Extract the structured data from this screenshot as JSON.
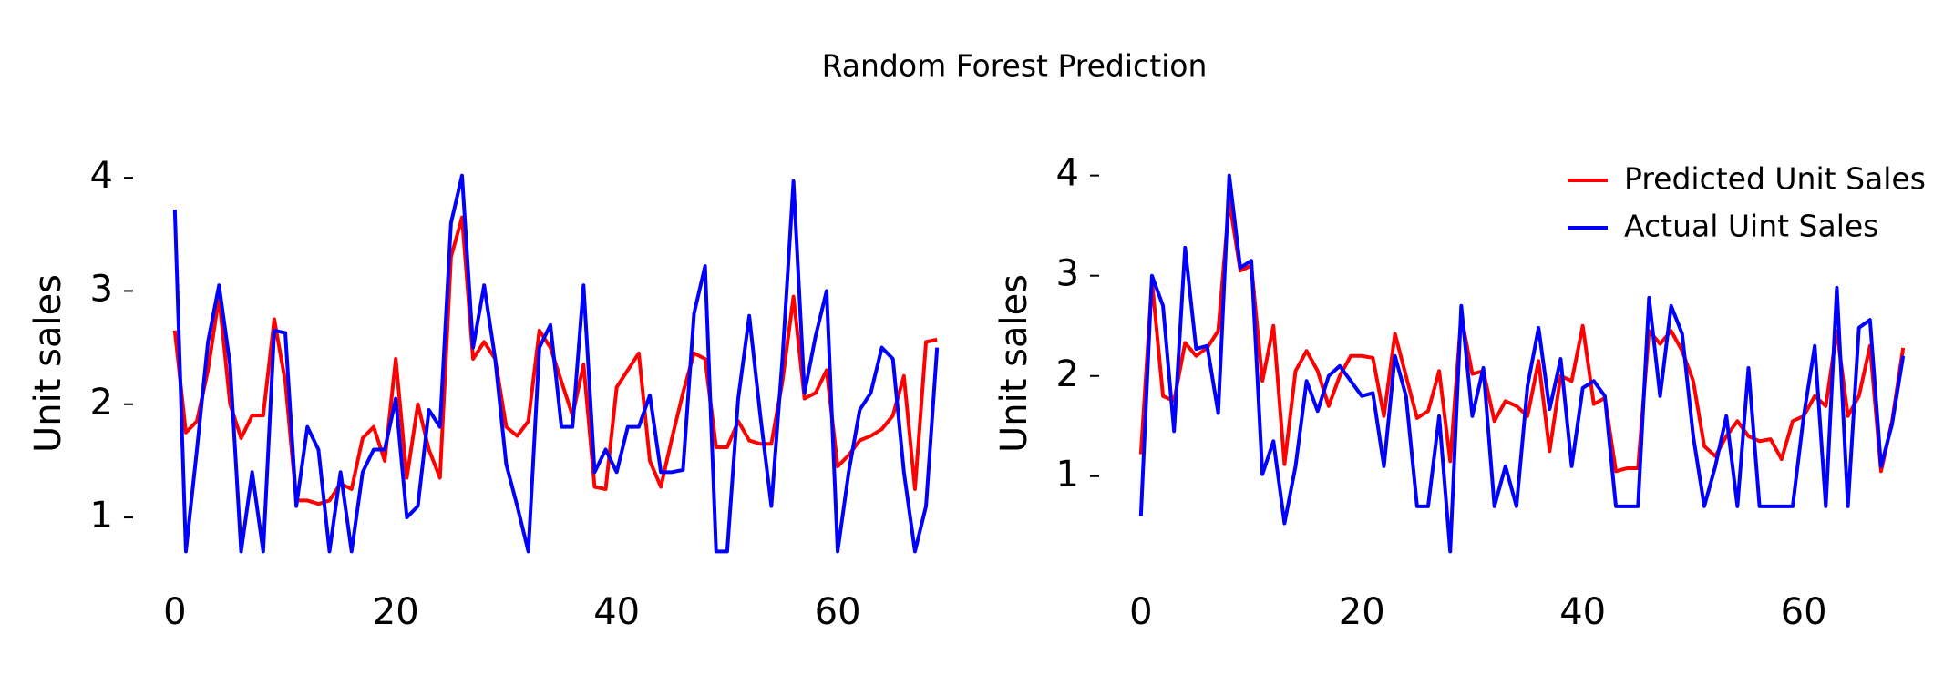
{
  "title": "Random Forest Prediction",
  "chart_data": [
    {
      "type": "line",
      "ylabel": "Unit sales",
      "x": [
        0,
        1,
        2,
        3,
        4,
        5,
        6,
        7,
        8,
        9,
        10,
        11,
        12,
        13,
        14,
        15,
        16,
        17,
        18,
        19,
        20,
        21,
        22,
        23,
        24,
        25,
        26,
        27,
        28,
        29,
        30,
        31,
        32,
        33,
        34,
        35,
        36,
        37,
        38,
        39,
        40,
        41,
        42,
        43,
        44,
        45,
        46,
        47,
        48,
        49,
        50,
        51,
        52,
        53,
        54,
        55,
        56,
        57,
        58,
        59,
        60,
        61,
        62,
        63,
        64,
        65,
        66,
        67,
        68,
        69
      ],
      "series": [
        {
          "color": "#ff0000",
          "values": [
            2.65,
            1.75,
            1.85,
            2.3,
            2.95,
            2.0,
            1.7,
            1.9,
            1.9,
            2.75,
            2.2,
            1.15,
            1.15,
            1.12,
            1.15,
            1.3,
            1.25,
            1.7,
            1.8,
            1.5,
            2.4,
            1.35,
            2.0,
            1.6,
            1.35,
            3.3,
            3.65,
            2.4,
            2.55,
            2.4,
            1.8,
            1.72,
            1.85,
            2.65,
            2.5,
            2.2,
            1.9,
            2.35,
            1.27,
            1.25,
            2.15,
            2.3,
            2.45,
            1.5,
            1.27,
            1.7,
            2.1,
            2.45,
            2.4,
            1.62,
            1.62,
            1.85,
            1.68,
            1.65,
            1.65,
            2.2,
            2.95,
            2.05,
            2.1,
            2.3,
            1.45,
            1.55,
            1.68,
            1.72,
            1.78,
            1.9,
            2.25,
            1.25,
            2.55,
            2.57
          ]
        },
        {
          "color": "#0000ff",
          "values": [
            3.72,
            0.7,
            1.6,
            2.55,
            3.05,
            2.35,
            0.7,
            1.4,
            0.7,
            2.65,
            2.63,
            1.1,
            1.8,
            1.6,
            0.7,
            1.4,
            0.7,
            1.4,
            1.6,
            1.6,
            2.05,
            1.0,
            1.1,
            1.95,
            1.8,
            3.6,
            4.02,
            2.5,
            3.05,
            2.4,
            1.47,
            1.1,
            0.7,
            2.5,
            2.7,
            1.8,
            1.8,
            3.05,
            1.4,
            1.6,
            1.4,
            1.8,
            1.8,
            2.08,
            1.4,
            1.4,
            1.42,
            2.8,
            3.22,
            0.7,
            0.7,
            2.05,
            2.78,
            1.9,
            1.1,
            2.4,
            3.97,
            2.1,
            2.6,
            3.0,
            0.7,
            1.4,
            1.95,
            2.1,
            2.5,
            2.4,
            1.4,
            0.7,
            1.1,
            2.5
          ]
        }
      ],
      "xlim": [
        -3.45,
        72.45
      ],
      "xticks": [
        0,
        20,
        40,
        60
      ],
      "ylim": [
        0.534,
        4.186
      ],
      "yticks": [
        1,
        2,
        3,
        4
      ]
    },
    {
      "type": "line",
      "ylabel": "Unit sales",
      "x": [
        0,
        1,
        2,
        3,
        4,
        5,
        6,
        7,
        8,
        9,
        10,
        11,
        12,
        13,
        14,
        15,
        16,
        17,
        18,
        19,
        20,
        21,
        22,
        23,
        24,
        25,
        26,
        27,
        28,
        29,
        30,
        31,
        32,
        33,
        34,
        35,
        36,
        37,
        38,
        39,
        40,
        41,
        42,
        43,
        44,
        45,
        46,
        47,
        48,
        49,
        50,
        51,
        52,
        53,
        54,
        55,
        56,
        57,
        58,
        59,
        60,
        61,
        62,
        63,
        64,
        65,
        66,
        67,
        68,
        69
      ],
      "series": [
        {
          "name": "Predicted Unit Sales",
          "color": "#ff0000",
          "values": [
            1.22,
            2.95,
            1.8,
            1.75,
            2.33,
            2.2,
            2.28,
            2.45,
            3.75,
            3.05,
            3.1,
            1.95,
            2.5,
            1.12,
            2.05,
            2.25,
            2.05,
            1.7,
            2.0,
            2.2,
            2.2,
            2.18,
            1.6,
            2.42,
            2.0,
            1.58,
            1.65,
            2.05,
            1.15,
            2.6,
            2.02,
            2.05,
            1.55,
            1.75,
            1.7,
            1.6,
            2.15,
            1.25,
            2.0,
            1.95,
            2.5,
            1.72,
            1.78,
            1.05,
            1.08,
            1.08,
            2.45,
            2.32,
            2.45,
            2.25,
            1.95,
            1.3,
            1.2,
            1.4,
            1.55,
            1.4,
            1.35,
            1.37,
            1.17,
            1.55,
            1.6,
            1.8,
            1.7,
            2.45,
            1.6,
            1.8,
            2.3,
            1.05,
            1.55,
            2.28
          ]
        },
        {
          "name": "Actual Uint Sales",
          "color": "#0000ff",
          "values": [
            0.6,
            3.0,
            2.7,
            1.45,
            3.28,
            2.27,
            2.3,
            1.63,
            4.0,
            3.08,
            3.15,
            1.02,
            1.35,
            0.53,
            1.1,
            1.95,
            1.65,
            2.0,
            2.1,
            1.95,
            1.8,
            1.83,
            1.1,
            2.2,
            1.8,
            0.7,
            0.7,
            1.6,
            0.25,
            2.7,
            1.6,
            2.08,
            0.7,
            1.1,
            0.7,
            1.9,
            2.48,
            1.67,
            2.17,
            1.1,
            1.88,
            1.95,
            1.8,
            0.7,
            0.7,
            0.7,
            2.78,
            1.8,
            2.7,
            2.42,
            1.4,
            0.7,
            1.1,
            1.6,
            0.7,
            2.08,
            0.7,
            0.7,
            0.7,
            0.7,
            1.6,
            2.3,
            0.7,
            2.88,
            0.7,
            2.48,
            2.56,
            1.1,
            1.52,
            2.2
          ]
        }
      ],
      "xlim": [
        -3.45,
        72.45
      ],
      "xticks": [
        0,
        20,
        40,
        60
      ],
      "ylim": [
        0.0625,
        4.1875
      ],
      "yticks": [
        1,
        2,
        3,
        4
      ],
      "legend": "upper right"
    }
  ]
}
